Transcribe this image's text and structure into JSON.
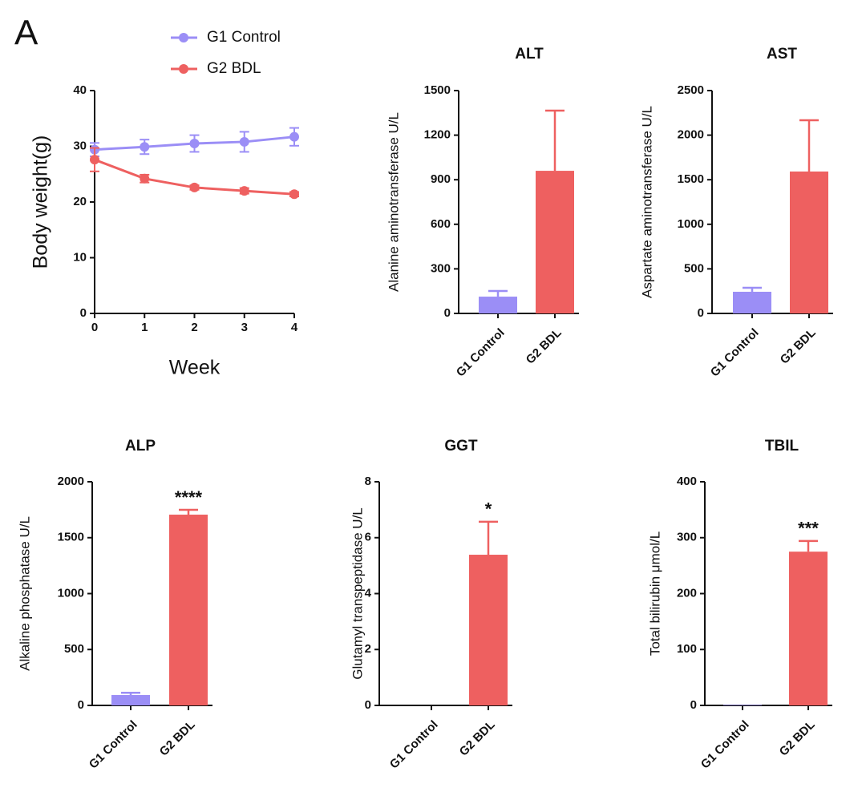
{
  "panel_label": "A",
  "chart_data": [
    {
      "type": "line",
      "x_label": "Week",
      "y_label": "Body weight(g)",
      "x": [
        0,
        1,
        2,
        3,
        4
      ],
      "xlim": [
        0,
        4
      ],
      "xticks": [
        0,
        1,
        2,
        3,
        4
      ],
      "ylim": [
        0,
        40
      ],
      "yticks": [
        0,
        10,
        20,
        30,
        40
      ],
      "series": [
        {
          "name": "G1 Control",
          "color": "#9b8ef6",
          "values": [
            29.4,
            29.9,
            30.5,
            30.8,
            31.7
          ],
          "errors": [
            1.2,
            1.3,
            1.5,
            1.8,
            1.6
          ]
        },
        {
          "name": "G2 BDL",
          "color": "#ee6060",
          "values": [
            27.6,
            24.2,
            22.6,
            22.0,
            21.4
          ],
          "errors": [
            2.1,
            0.7,
            0.4,
            0.5,
            0.4
          ]
        }
      ]
    },
    {
      "type": "bar",
      "title": "ALT",
      "y_label": "Alanine aminotransferase U/L",
      "categories": [
        "G1 Control",
        "G2 BDL"
      ],
      "values": [
        113,
        960
      ],
      "errors": [
        38,
        405
      ],
      "colors": [
        "#9b8ef6",
        "#ee6060"
      ],
      "ylim": [
        0,
        1500
      ],
      "yticks": [
        0,
        300,
        600,
        900,
        1200,
        1500
      ]
    },
    {
      "type": "bar",
      "title": "AST",
      "y_label": "Aspartate aminotransferase U/L",
      "categories": [
        "G1 Control",
        "G2 BDL"
      ],
      "values": [
        243,
        1592
      ],
      "errors": [
        45,
        575
      ],
      "colors": [
        "#9b8ef6",
        "#ee6060"
      ],
      "ylim": [
        0,
        2500
      ],
      "yticks": [
        0,
        500,
        1000,
        1500,
        2000,
        2500
      ]
    },
    {
      "type": "bar",
      "title": "ALP",
      "y_label": "Alkaline phosphatase U/L",
      "categories": [
        "G1 Control",
        "G2 BDL"
      ],
      "values": [
        93,
        1706
      ],
      "errors": [
        20,
        43
      ],
      "colors": [
        "#9b8ef6",
        "#ee6060"
      ],
      "ylim": [
        0,
        2000
      ],
      "yticks": [
        0,
        500,
        1000,
        1500,
        2000
      ],
      "significance": [
        null,
        "****"
      ]
    },
    {
      "type": "bar",
      "title": "GGT",
      "y_label": "Glutamyl transpeptidase U/L",
      "categories": [
        "G1 Control",
        "G2 BDL"
      ],
      "values": [
        0,
        5.39
      ],
      "errors": [
        0,
        1.18
      ],
      "colors": [
        "#9b8ef6",
        "#ee6060"
      ],
      "ylim": [
        0,
        8
      ],
      "yticks": [
        0,
        2,
        4,
        6,
        8
      ],
      "significance": [
        null,
        "*"
      ]
    },
    {
      "type": "bar",
      "title": "TBIL",
      "y_label": "Total bilirubin μmol/L",
      "categories": [
        "G1 Control",
        "G2 BDL"
      ],
      "values": [
        1,
        275
      ],
      "errors": [
        0,
        19
      ],
      "colors": [
        "#9b8ef6",
        "#ee6060"
      ],
      "ylim": [
        0,
        400
      ],
      "yticks": [
        0,
        100,
        200,
        300,
        400
      ],
      "significance": [
        null,
        "***"
      ]
    }
  ]
}
